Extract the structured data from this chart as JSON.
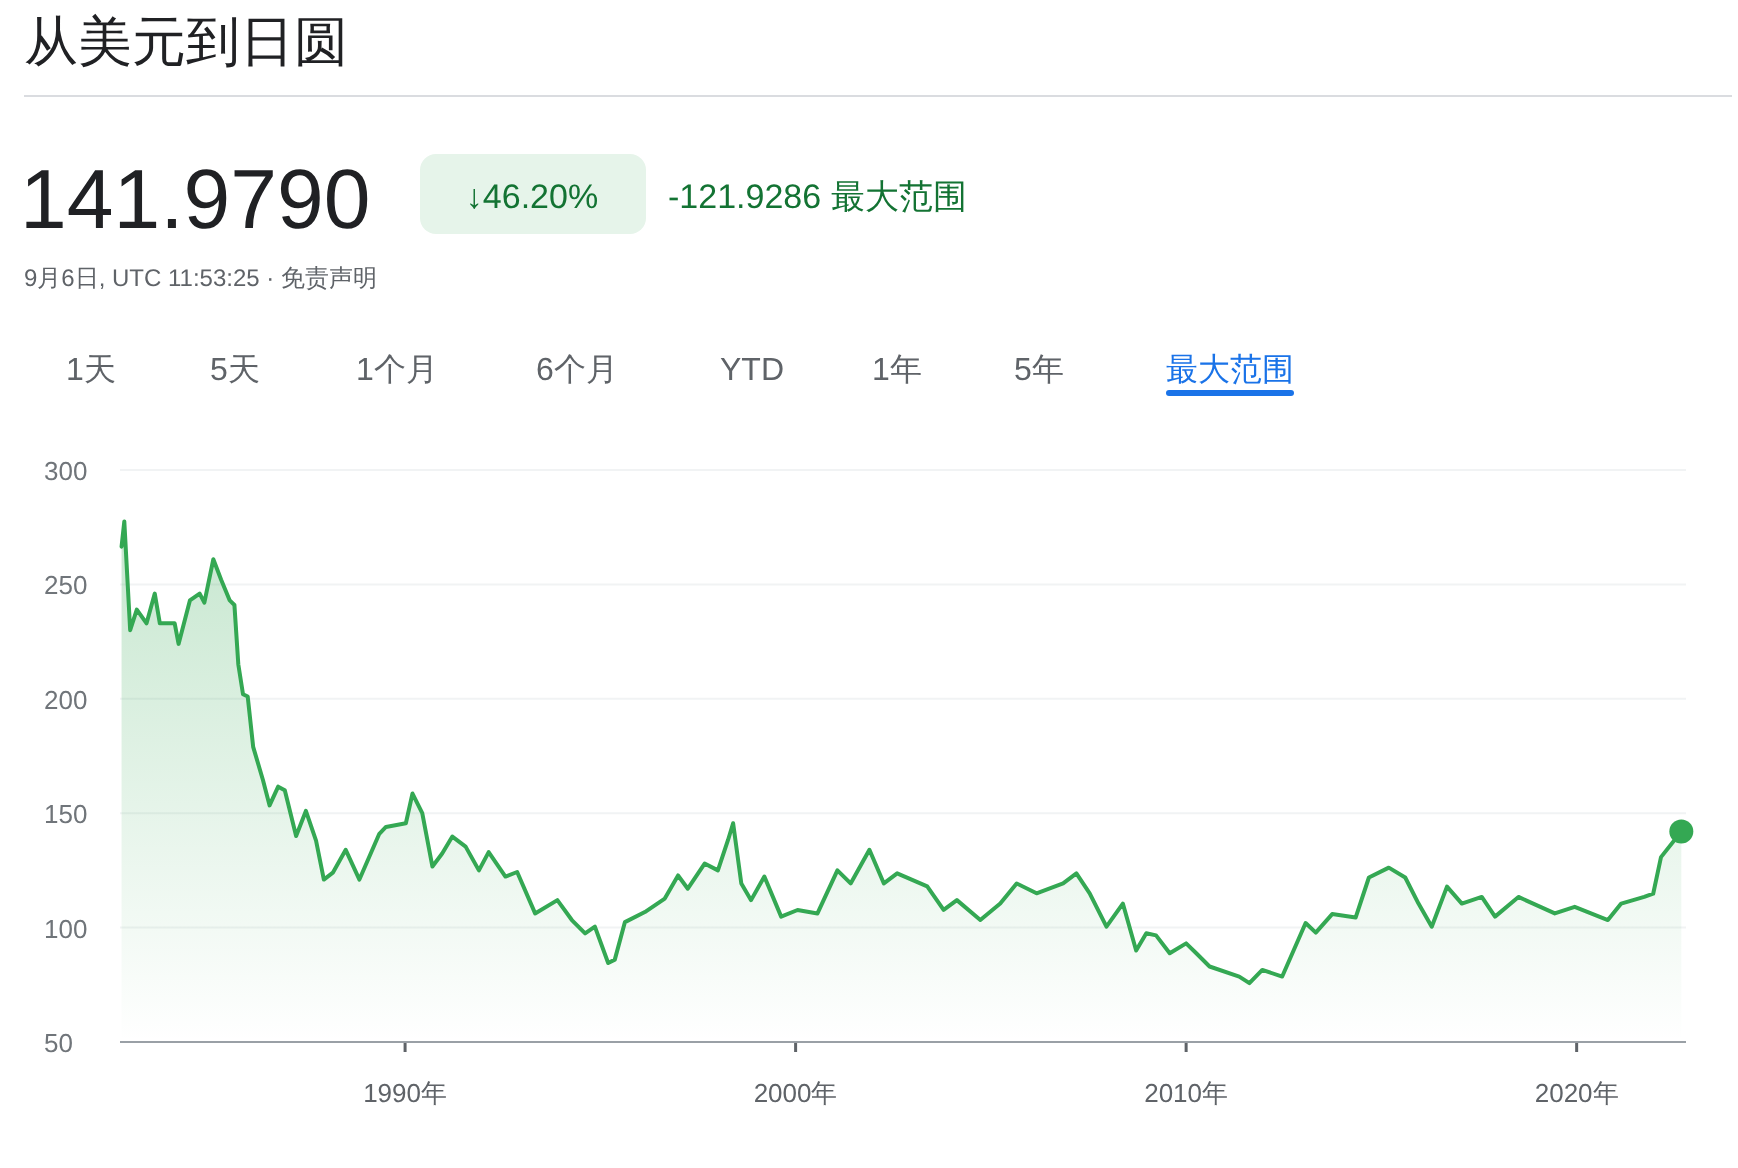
{
  "chart_data": {
    "type": "area",
    "title": "从美元到日圆",
    "subtitle": "141.9790",
    "annotations": [
      "↓46.20%",
      "-121.9286 最大范围",
      "9月6日, UTC 11:53:25 · 免责声明",
      "1天",
      "5天",
      "1个月",
      "6个月",
      "YTD",
      "1年",
      "5年",
      "最大范围"
    ],
    "x": [
      1982.74,
      1982.81,
      1982.96,
      1983.13,
      1983.38,
      1983.59,
      1983.72,
      1984.1,
      1984.2,
      1984.49,
      1984.74,
      1984.86,
      1985.09,
      1985.29,
      1985.51,
      1985.63,
      1985.73,
      1985.85,
      1985.97,
      1986.11,
      1986.36,
      1986.53,
      1986.75,
      1986.92,
      1987.21,
      1987.46,
      1987.72,
      1987.92,
      1988.15,
      1988.48,
      1988.83,
      1989.34,
      1989.51,
      1990.02,
      1990.19,
      1990.44,
      1990.7,
      1990.95,
      1991.21,
      1991.55,
      1991.89,
      1992.14,
      1992.57,
      1992.87,
      1993.33,
      1993.9,
      1994.27,
      1994.61,
      1994.86,
      1995.2,
      1995.37,
      1995.63,
      1996.14,
      1996.65,
      1996.99,
      1997.24,
      1997.67,
      1998.01,
      1998.27,
      1998.4,
      1998.61,
      1998.86,
      1999.2,
      1999.63,
      2000.05,
      2000.56,
      2001.07,
      2001.41,
      2001.89,
      2002.26,
      2002.6,
      2003.37,
      2003.79,
      2004.13,
      2004.73,
      2005.24,
      2005.66,
      2006.17,
      2006.85,
      2007.19,
      2007.53,
      2007.96,
      2008.38,
      2008.72,
      2008.98,
      2009.23,
      2009.58,
      2010.0,
      2010.26,
      2010.6,
      2011.36,
      2011.62,
      2011.95,
      2012.46,
      2013.06,
      2013.32,
      2013.74,
      2014.34,
      2014.68,
      2015.19,
      2015.61,
      2015.95,
      2016.29,
      2016.68,
      2017.06,
      2017.57,
      2017.91,
      2018.51,
      2019.44,
      2019.95,
      2020.8,
      2021.14,
      2021.73,
      2021.96,
      2022.16,
      2022.68
    ],
    "series": [
      {
        "color": "#34a853",
        "values": [
          266.5,
          277.5,
          230,
          239,
          233,
          246,
          233,
          233,
          224,
          243,
          246,
          242,
          261,
          252,
          243,
          241,
          215,
          202,
          201,
          179,
          164.5,
          153.4,
          161.6,
          160,
          140,
          151,
          138,
          121,
          124,
          134,
          121,
          141,
          144,
          145.6,
          158.6,
          150,
          126.7,
          132.4,
          139.8,
          135.4,
          125,
          133,
          122.3,
          124.3,
          106.2,
          112,
          103.3,
          97.5,
          100.4,
          84.5,
          86,
          102.4,
          106.8,
          112.7,
          122.8,
          117,
          128,
          125,
          138.3,
          145.6,
          119.3,
          112,
          122.3,
          104.8,
          107.7,
          106.2,
          125,
          119.3,
          134,
          119.3,
          123.7,
          118,
          107.7,
          112,
          103.3,
          110.5,
          119.3,
          115,
          119.3,
          123.7,
          115,
          100.4,
          110.5,
          90,
          97.5,
          96.6,
          88.8,
          93.1,
          88.8,
          83,
          78.6,
          75.7,
          81.5,
          78.6,
          102,
          97.8,
          105.9,
          104.4,
          121.9,
          126.2,
          121.9,
          110.5,
          100.4,
          117.9,
          110.5,
          113.4,
          104.8,
          113.4,
          106.2,
          109.1,
          103.3,
          110.5,
          113.4,
          114.8,
          130.8,
          141.979
        ]
      }
    ],
    "xlim": [
      1982.7,
      2022.8
    ],
    "ylim": [
      50,
      300
    ],
    "xticks": [
      {
        "value": 1990,
        "label": "1990年"
      },
      {
        "value": 2000,
        "label": "2000年"
      },
      {
        "value": 2010,
        "label": "2010年"
      },
      {
        "value": 2020,
        "label": "2020年"
      }
    ],
    "yticks": [
      50,
      100,
      150,
      200,
      250,
      300
    ],
    "grid": "y"
  }
}
